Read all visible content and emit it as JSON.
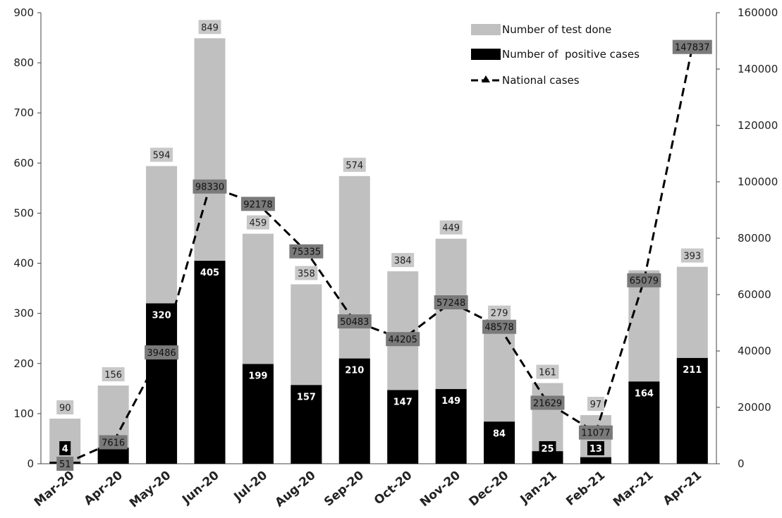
{
  "chart_data": {
    "type": "bar",
    "categories": [
      "Mar-20",
      "Apr-20",
      "May-20",
      "Jun-20",
      "Jul-20",
      "Aug-20",
      "Sep-20",
      "Oct-20",
      "Nov-20",
      "Dec-20",
      "Jan-21",
      "Feb-21",
      "Mar-21",
      "Apr-21"
    ],
    "series": [
      {
        "name": "Number of test done",
        "type": "bar",
        "axis": "left",
        "color": "#c0c0c0",
        "values": [
          90,
          156,
          594,
          849,
          459,
          358,
          574,
          384,
          449,
          279,
          161,
          97,
          386,
          393
        ],
        "labels": [
          "90",
          "156",
          "594",
          "849",
          "459",
          "358",
          "574",
          "384",
          "449",
          "279",
          "161",
          "97",
          "",
          "393"
        ]
      },
      {
        "name": "Number of  positive cases",
        "type": "bar",
        "axis": "left",
        "color": "#000000",
        "values": [
          4,
          32,
          320,
          405,
          199,
          157,
          210,
          147,
          149,
          84,
          25,
          13,
          164,
          211
        ],
        "labels": [
          "4",
          "",
          "320",
          "405",
          "199",
          "157",
          "210",
          "147",
          "149",
          "84",
          "25",
          "13",
          "164",
          "211"
        ]
      },
      {
        "name": "National cases",
        "type": "line",
        "axis": "right",
        "color": "#000000",
        "dash": true,
        "values": [
          51,
          7616,
          39486,
          98330,
          92178,
          75335,
          50483,
          44205,
          57248,
          48578,
          21629,
          11077,
          65079,
          147837
        ],
        "labels": [
          "51",
          "7616",
          "39486",
          "98330",
          "92178",
          "75335",
          "50483",
          "44205",
          "57248",
          "48578",
          "21629",
          "11077",
          "65079",
          "147837"
        ]
      }
    ],
    "y_left": {
      "ylim": [
        0,
        900
      ],
      "ticks": [
        "0",
        "100",
        "200",
        "300",
        "400",
        "500",
        "600",
        "700",
        "800",
        "900"
      ]
    },
    "y_right": {
      "ylim": [
        0,
        160000
      ],
      "ticks": [
        "0",
        "20000",
        "40000",
        "60000",
        "80000",
        "100000",
        "120000",
        "140000",
        "160000"
      ]
    },
    "legend_position": "top-right",
    "grid": false
  }
}
